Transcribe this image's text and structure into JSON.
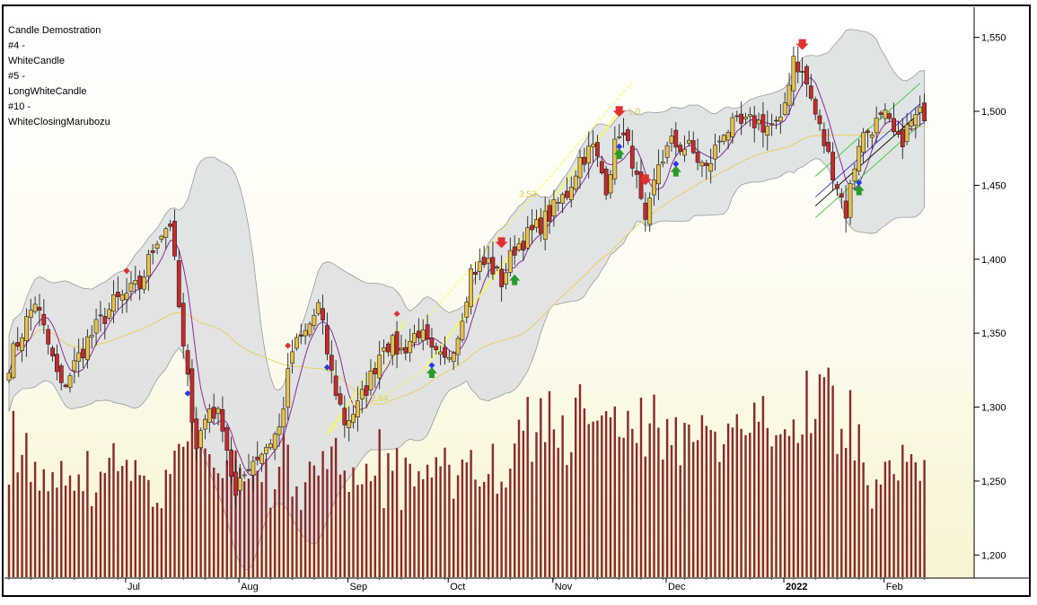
{
  "chart_data": {
    "type": "candlestick",
    "legend_lines": [
      "Candle Demostration",
      "#4 -",
      "WhiteCandle",
      "#5 -",
      "LongWhiteCandle",
      "#10 -",
      "WhiteClosingMarubozu"
    ],
    "x_ticks": [
      "Jul",
      "Aug",
      "Sep",
      "Oct",
      "Nov",
      "Dec",
      "2022",
      "Feb"
    ],
    "y_ticks": [
      1200,
      1250,
      1300,
      1350,
      1400,
      1450,
      1500,
      1550
    ],
    "y_tick_labels": [
      "1,200",
      "1,250",
      "1,300",
      "1,350",
      "1,400",
      "1,450",
      "1,500",
      "1,550"
    ],
    "ylim": [
      1185,
      1568
    ],
    "fib_labels": [
      "3.53",
      "2.64",
      "1.0"
    ],
    "grid": false,
    "close_path": [
      [
        0,
        1330
      ],
      [
        6,
        1372
      ],
      [
        12,
        1312
      ],
      [
        18,
        1345
      ],
      [
        24,
        1370
      ],
      [
        30,
        1382
      ],
      [
        34,
        1415
      ],
      [
        37,
        1425
      ],
      [
        40,
        1338
      ],
      [
        43,
        1275
      ],
      [
        46,
        1300
      ],
      [
        49,
        1290
      ],
      [
        52,
        1238
      ],
      [
        55,
        1262
      ],
      [
        58,
        1270
      ],
      [
        62,
        1285
      ],
      [
        65,
        1338
      ],
      [
        68,
        1350
      ],
      [
        71,
        1368
      ],
      [
        74,
        1322
      ],
      [
        77,
        1290
      ],
      [
        80,
        1300
      ],
      [
        83,
        1320
      ],
      [
        86,
        1345
      ],
      [
        90,
        1338
      ],
      [
        94,
        1352
      ],
      [
        97,
        1335
      ],
      [
        100,
        1330
      ],
      [
        103,
        1350
      ],
      [
        106,
        1392
      ],
      [
        110,
        1398
      ],
      [
        113,
        1385
      ],
      [
        116,
        1408
      ],
      [
        120,
        1418
      ],
      [
        124,
        1430
      ],
      [
        128,
        1445
      ],
      [
        131,
        1468
      ],
      [
        134,
        1475
      ],
      [
        137,
        1450
      ],
      [
        140,
        1488
      ],
      [
        143,
        1468
      ],
      [
        146,
        1420
      ],
      [
        149,
        1465
      ],
      [
        152,
        1478
      ],
      [
        156,
        1475
      ],
      [
        160,
        1460
      ],
      [
        164,
        1488
      ],
      [
        168,
        1490
      ],
      [
        171,
        1493
      ],
      [
        174,
        1490
      ],
      [
        177,
        1490
      ],
      [
        180,
        1538
      ],
      [
        183,
        1518
      ],
      [
        186,
        1488
      ],
      [
        189,
        1460
      ],
      [
        192,
        1432
      ],
      [
        195,
        1480
      ],
      [
        198,
        1490
      ],
      [
        201,
        1495
      ],
      [
        204,
        1478
      ],
      [
        207,
        1492
      ],
      [
        210,
        1500
      ]
    ],
    "volume_scale_note": "relative"
  }
}
